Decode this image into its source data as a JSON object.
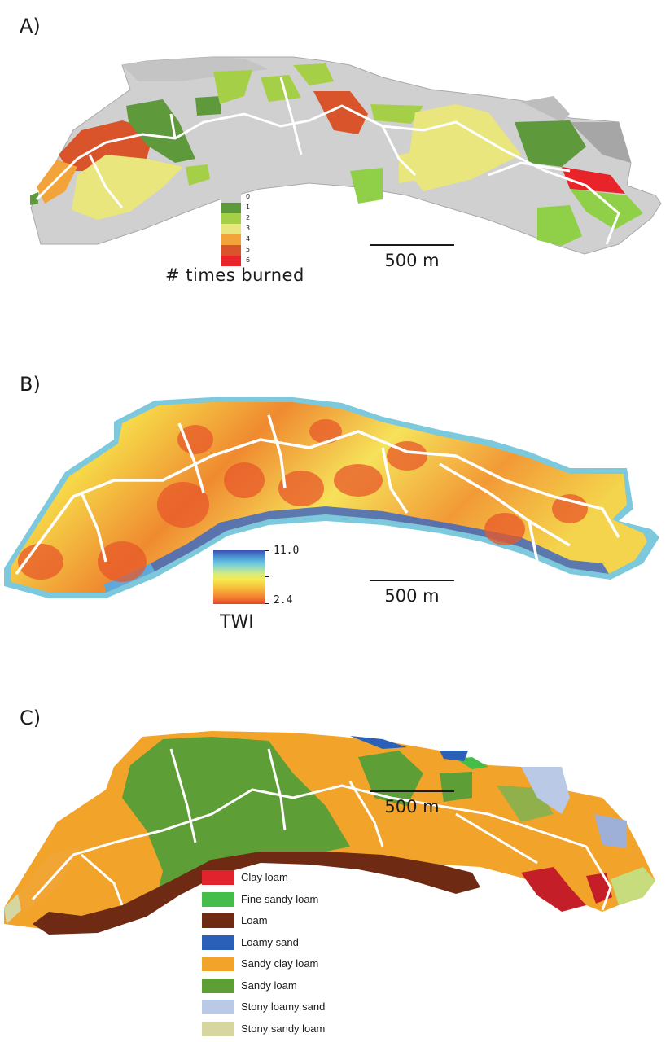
{
  "panels": {
    "a": {
      "label": "A)",
      "legend": {
        "title": "# times burned",
        "items": [
          {
            "value": "0",
            "color": "#d0d0d0"
          },
          {
            "value": "1",
            "color": "#5e9a3c"
          },
          {
            "value": "2",
            "color": "#a6cf48"
          },
          {
            "value": "3",
            "color": "#e8e67c"
          },
          {
            "value": "4",
            "color": "#f2a43a"
          },
          {
            "value": "5",
            "color": "#d9542b"
          },
          {
            "value": "6",
            "color": "#e8232a"
          }
        ]
      },
      "scalebar": "500 m"
    },
    "b": {
      "label": "B)",
      "colorbar": {
        "title": "TWI",
        "max": "11.0",
        "min": "2.4"
      },
      "scalebar": "500 m"
    },
    "c": {
      "label": "C)",
      "legend": {
        "items": [
          {
            "name": "Clay loam",
            "color": "#e0232d"
          },
          {
            "name": "Fine sandy loam",
            "color": "#44bd4a"
          },
          {
            "name": "Loam",
            "color": "#6e2a12"
          },
          {
            "name": "Loamy sand",
            "color": "#2a60b8"
          },
          {
            "name": "Sandy clay loam",
            "color": "#f2a32a"
          },
          {
            "name": "Sandy loam",
            "color": "#5e9e36"
          },
          {
            "name": "Stony loamy sand",
            "color": "#b9c9e6"
          },
          {
            "name": "Stony sandy loam",
            "color": "#d6d6a0"
          }
        ]
      },
      "scalebar": "500 m"
    }
  }
}
